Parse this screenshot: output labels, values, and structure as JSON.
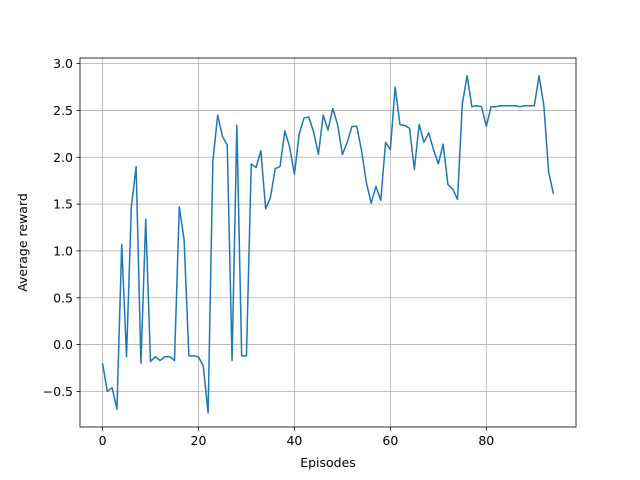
{
  "chart_data": {
    "type": "line",
    "title": "",
    "xlabel": "Episodes",
    "ylabel": "Average reward",
    "xlim": [
      -4.7,
      98.7
    ],
    "ylim": [
      -0.88,
      3.06
    ],
    "xticks": [
      0,
      20,
      40,
      60,
      80
    ],
    "yticks": [
      -0.5,
      0.0,
      0.5,
      1.0,
      1.5,
      2.0,
      2.5,
      3.0
    ],
    "xtick_labels": [
      "0",
      "20",
      "40",
      "60",
      "80"
    ],
    "ytick_labels": [
      "−0.5",
      "0.0",
      "0.5",
      "1.0",
      "1.5",
      "2.0",
      "2.5",
      "3.0"
    ],
    "grid": true,
    "line_color": "#1f77b4",
    "series": [
      {
        "x": [
          0,
          1,
          2,
          3,
          4,
          5,
          6,
          7,
          8,
          9,
          10,
          11,
          12,
          13,
          14,
          15,
          16,
          17,
          18,
          19,
          20,
          21,
          22,
          23,
          24,
          25,
          26,
          27,
          28,
          29,
          30,
          31,
          32,
          33,
          34,
          35,
          36,
          37,
          38,
          39,
          40,
          41,
          42,
          43,
          44,
          45,
          46,
          47,
          48,
          49,
          50,
          51,
          52,
          53,
          54,
          55,
          56,
          57,
          58,
          59,
          60,
          61,
          62,
          63,
          64,
          65,
          66,
          67,
          68,
          69,
          70,
          71,
          72,
          73,
          74,
          75,
          76,
          77,
          78,
          79,
          80,
          81,
          82,
          83,
          84,
          85,
          86,
          87,
          88,
          89,
          90,
          91,
          92,
          93,
          94
        ],
        "values": [
          -0.2,
          -0.5,
          -0.46,
          -0.69,
          1.07,
          -0.13,
          1.47,
          1.9,
          -0.2,
          1.34,
          -0.18,
          -0.13,
          -0.17,
          -0.13,
          -0.13,
          -0.17,
          1.47,
          1.12,
          -0.12,
          -0.12,
          -0.13,
          -0.23,
          -0.73,
          1.96,
          2.45,
          2.22,
          2.13,
          -0.17,
          2.34,
          -0.12,
          -0.12,
          1.93,
          1.89,
          2.07,
          1.45,
          1.57,
          1.88,
          1.9,
          2.28,
          2.11,
          1.82,
          2.25,
          2.42,
          2.43,
          2.27,
          2.03,
          2.45,
          2.29,
          2.52,
          2.35,
          2.03,
          2.16,
          2.33,
          2.33,
          2.07,
          1.73,
          1.51,
          1.69,
          1.54,
          2.16,
          2.08,
          2.75,
          2.35,
          2.34,
          2.31,
          1.87,
          2.35,
          2.16,
          2.26,
          2.08,
          1.93,
          2.14,
          1.71,
          1.66,
          1.55,
          2.57,
          2.87,
          2.54,
          2.55,
          2.54,
          2.33,
          2.54,
          2.54,
          2.55,
          2.55,
          2.55,
          2.55,
          2.54,
          2.55,
          2.55,
          2.55,
          2.87,
          2.55,
          1.84,
          1.61
        ]
      }
    ]
  }
}
